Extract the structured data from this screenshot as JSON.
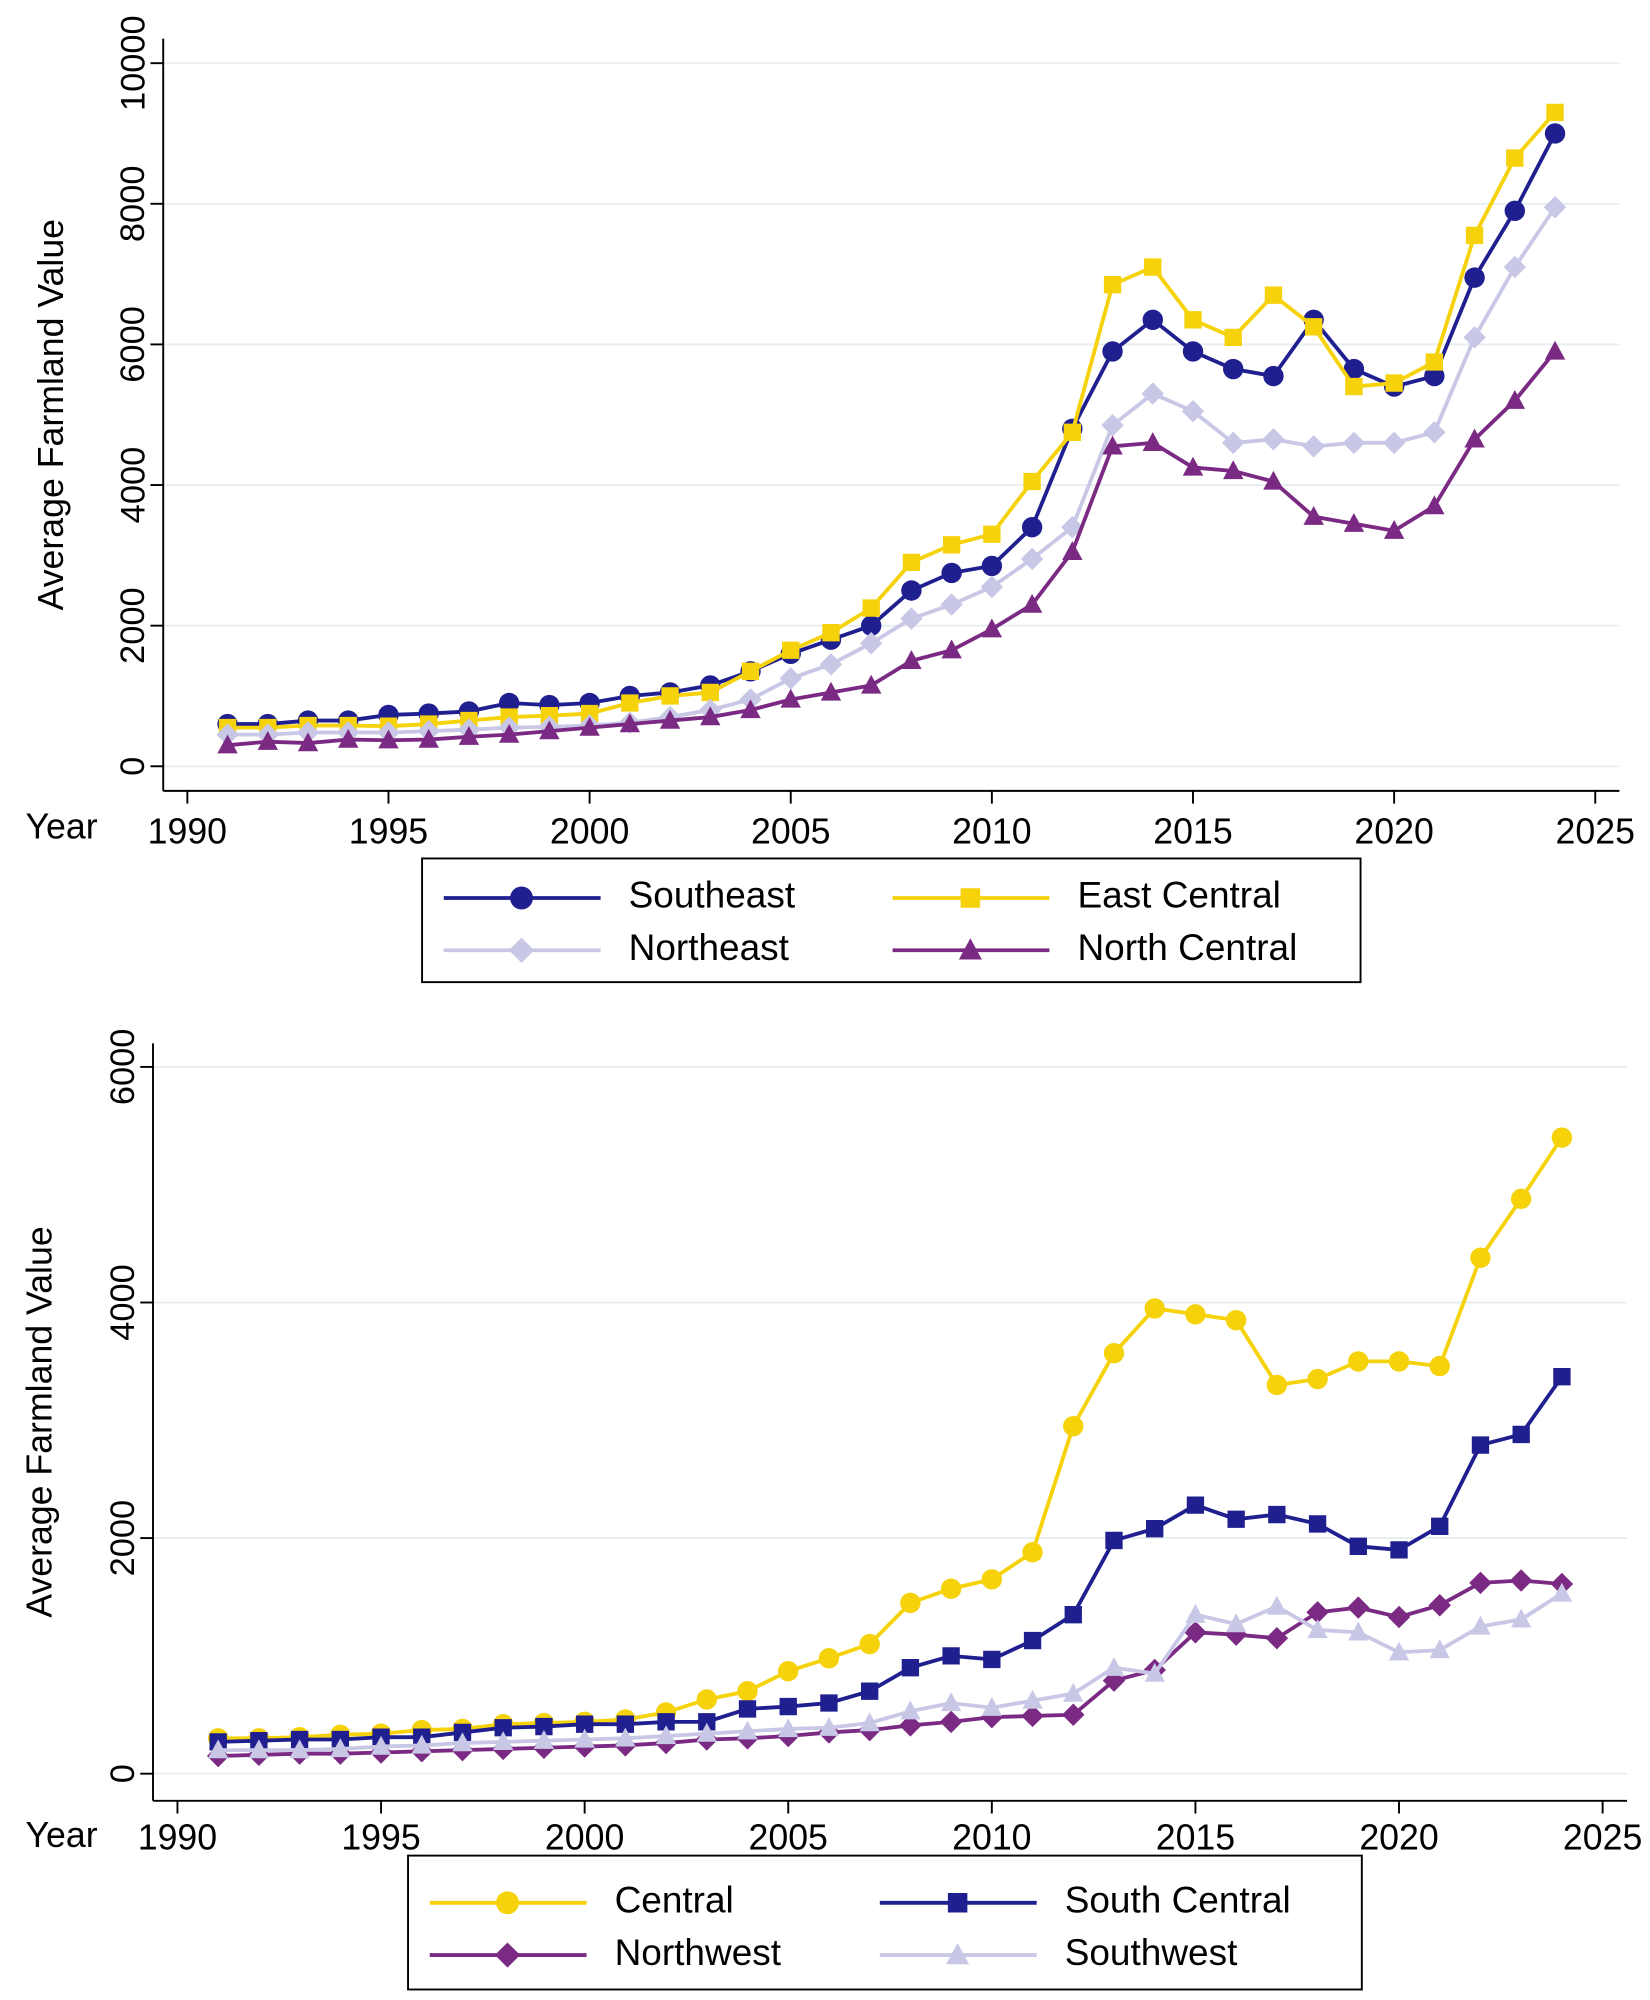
{
  "chart_data": [
    {
      "type": "line",
      "x_label": "Year",
      "y_label": "Average Farmland Value",
      "x": [
        1991,
        1992,
        1993,
        1994,
        1995,
        1996,
        1997,
        1998,
        1999,
        2000,
        2001,
        2002,
        2003,
        2004,
        2005,
        2006,
        2007,
        2008,
        2009,
        2010,
        2011,
        2012,
        2013,
        2014,
        2015,
        2016,
        2017,
        2018,
        2019,
        2020,
        2021,
        2022,
        2023,
        2024
      ],
      "xlim": [
        1989.4,
        2025.6
      ],
      "xticks": [
        1990,
        1995,
        2000,
        2005,
        2010,
        2015,
        2020,
        2025
      ],
      "ylim": [
        -350,
        10350
      ],
      "yticks": [
        0,
        2000,
        4000,
        6000,
        8000,
        10000
      ],
      "grid": true,
      "series": [
        {
          "name": "Southeast",
          "color": "#1f1f8f",
          "marker": "circle",
          "values": [
            600,
            600,
            650,
            650,
            730,
            750,
            780,
            900,
            870,
            900,
            1000,
            1050,
            1150,
            1350,
            1600,
            1800,
            2000,
            2500,
            2750,
            2850,
            3400,
            4800,
            5900,
            6350,
            5900,
            5650,
            5550,
            6350,
            5650,
            5400,
            5550,
            6950,
            7900,
            9000
          ]
        },
        {
          "name": "East Central",
          "color": "#f5d20a",
          "marker": "square",
          "values": [
            550,
            550,
            580,
            580,
            570,
            600,
            650,
            700,
            720,
            750,
            900,
            1000,
            1050,
            1350,
            1650,
            1900,
            2250,
            2900,
            3150,
            3300,
            4050,
            4750,
            6850,
            7100,
            6350,
            6100,
            6700,
            6250,
            5400,
            5450,
            5750,
            7550,
            8650,
            9300
          ]
        },
        {
          "name": "Northeast",
          "color": "#c8c8e6",
          "marker": "diamond",
          "values": [
            450,
            450,
            480,
            480,
            480,
            500,
            520,
            550,
            560,
            580,
            620,
            700,
            800,
            950,
            1250,
            1450,
            1750,
            2100,
            2300,
            2550,
            2950,
            3400,
            4850,
            5300,
            5050,
            4600,
            4650,
            4550,
            4600,
            4600,
            4750,
            6100,
            7100,
            7950
          ]
        },
        {
          "name": "North Central",
          "color": "#7b2a83",
          "marker": "triangle",
          "values": [
            300,
            350,
            330,
            380,
            370,
            380,
            420,
            450,
            500,
            550,
            600,
            650,
            700,
            800,
            950,
            1050,
            1150,
            1500,
            1650,
            1950,
            2300,
            3050,
            4550,
            4600,
            4250,
            4200,
            4050,
            3550,
            3450,
            3350,
            3700,
            4650,
            5200,
            5900
          ]
        }
      ]
    },
    {
      "type": "line",
      "x_label": "Year",
      "y_label": "Average Farmland Value",
      "x": [
        1991,
        1992,
        1993,
        1994,
        1995,
        1996,
        1997,
        1998,
        1999,
        2000,
        2001,
        2002,
        2003,
        2004,
        2005,
        2006,
        2007,
        2008,
        2009,
        2010,
        2011,
        2012,
        2013,
        2014,
        2015,
        2016,
        2017,
        2018,
        2019,
        2020,
        2021,
        2022,
        2023,
        2024
      ],
      "xlim": [
        1989.4,
        2025.6
      ],
      "xticks": [
        1990,
        1995,
        2000,
        2005,
        2010,
        2015,
        2020,
        2025
      ],
      "ylim": [
        -230,
        6200
      ],
      "yticks": [
        0,
        2000,
        4000,
        6000
      ],
      "grid": true,
      "series": [
        {
          "name": "Central",
          "color": "#f5d20a",
          "marker": "circle",
          "values": [
            300,
            300,
            310,
            330,
            340,
            370,
            380,
            420,
            430,
            440,
            460,
            520,
            630,
            700,
            870,
            980,
            1100,
            1450,
            1570,
            1650,
            1880,
            2950,
            3570,
            3950,
            3900,
            3850,
            3300,
            3350,
            3500,
            3500,
            3460,
            4380,
            4880,
            5400
          ]
        },
        {
          "name": "South Central",
          "color": "#1f1f8f",
          "marker": "square",
          "values": [
            270,
            280,
            290,
            290,
            310,
            310,
            350,
            390,
            400,
            420,
            420,
            440,
            440,
            550,
            570,
            600,
            700,
            900,
            1000,
            970,
            1130,
            1350,
            1980,
            2080,
            2280,
            2160,
            2200,
            2120,
            1930,
            1900,
            2100,
            2790,
            2880,
            3370
          ]
        },
        {
          "name": "Northwest",
          "color": "#7b2a83",
          "marker": "diamond",
          "values": [
            150,
            160,
            170,
            170,
            180,
            190,
            200,
            210,
            220,
            230,
            240,
            260,
            290,
            300,
            320,
            350,
            370,
            410,
            440,
            480,
            490,
            500,
            790,
            880,
            1200,
            1180,
            1150,
            1370,
            1410,
            1330,
            1430,
            1620,
            1640,
            1610
          ]
        },
        {
          "name": "Southwest",
          "color": "#c8c8e6",
          "marker": "triangle",
          "values": [
            200,
            200,
            200,
            210,
            230,
            240,
            260,
            270,
            280,
            290,
            300,
            320,
            340,
            360,
            380,
            390,
            430,
            530,
            600,
            560,
            620,
            680,
            900,
            850,
            1350,
            1270,
            1420,
            1220,
            1200,
            1030,
            1050,
            1250,
            1310,
            1530
          ]
        }
      ]
    }
  ]
}
